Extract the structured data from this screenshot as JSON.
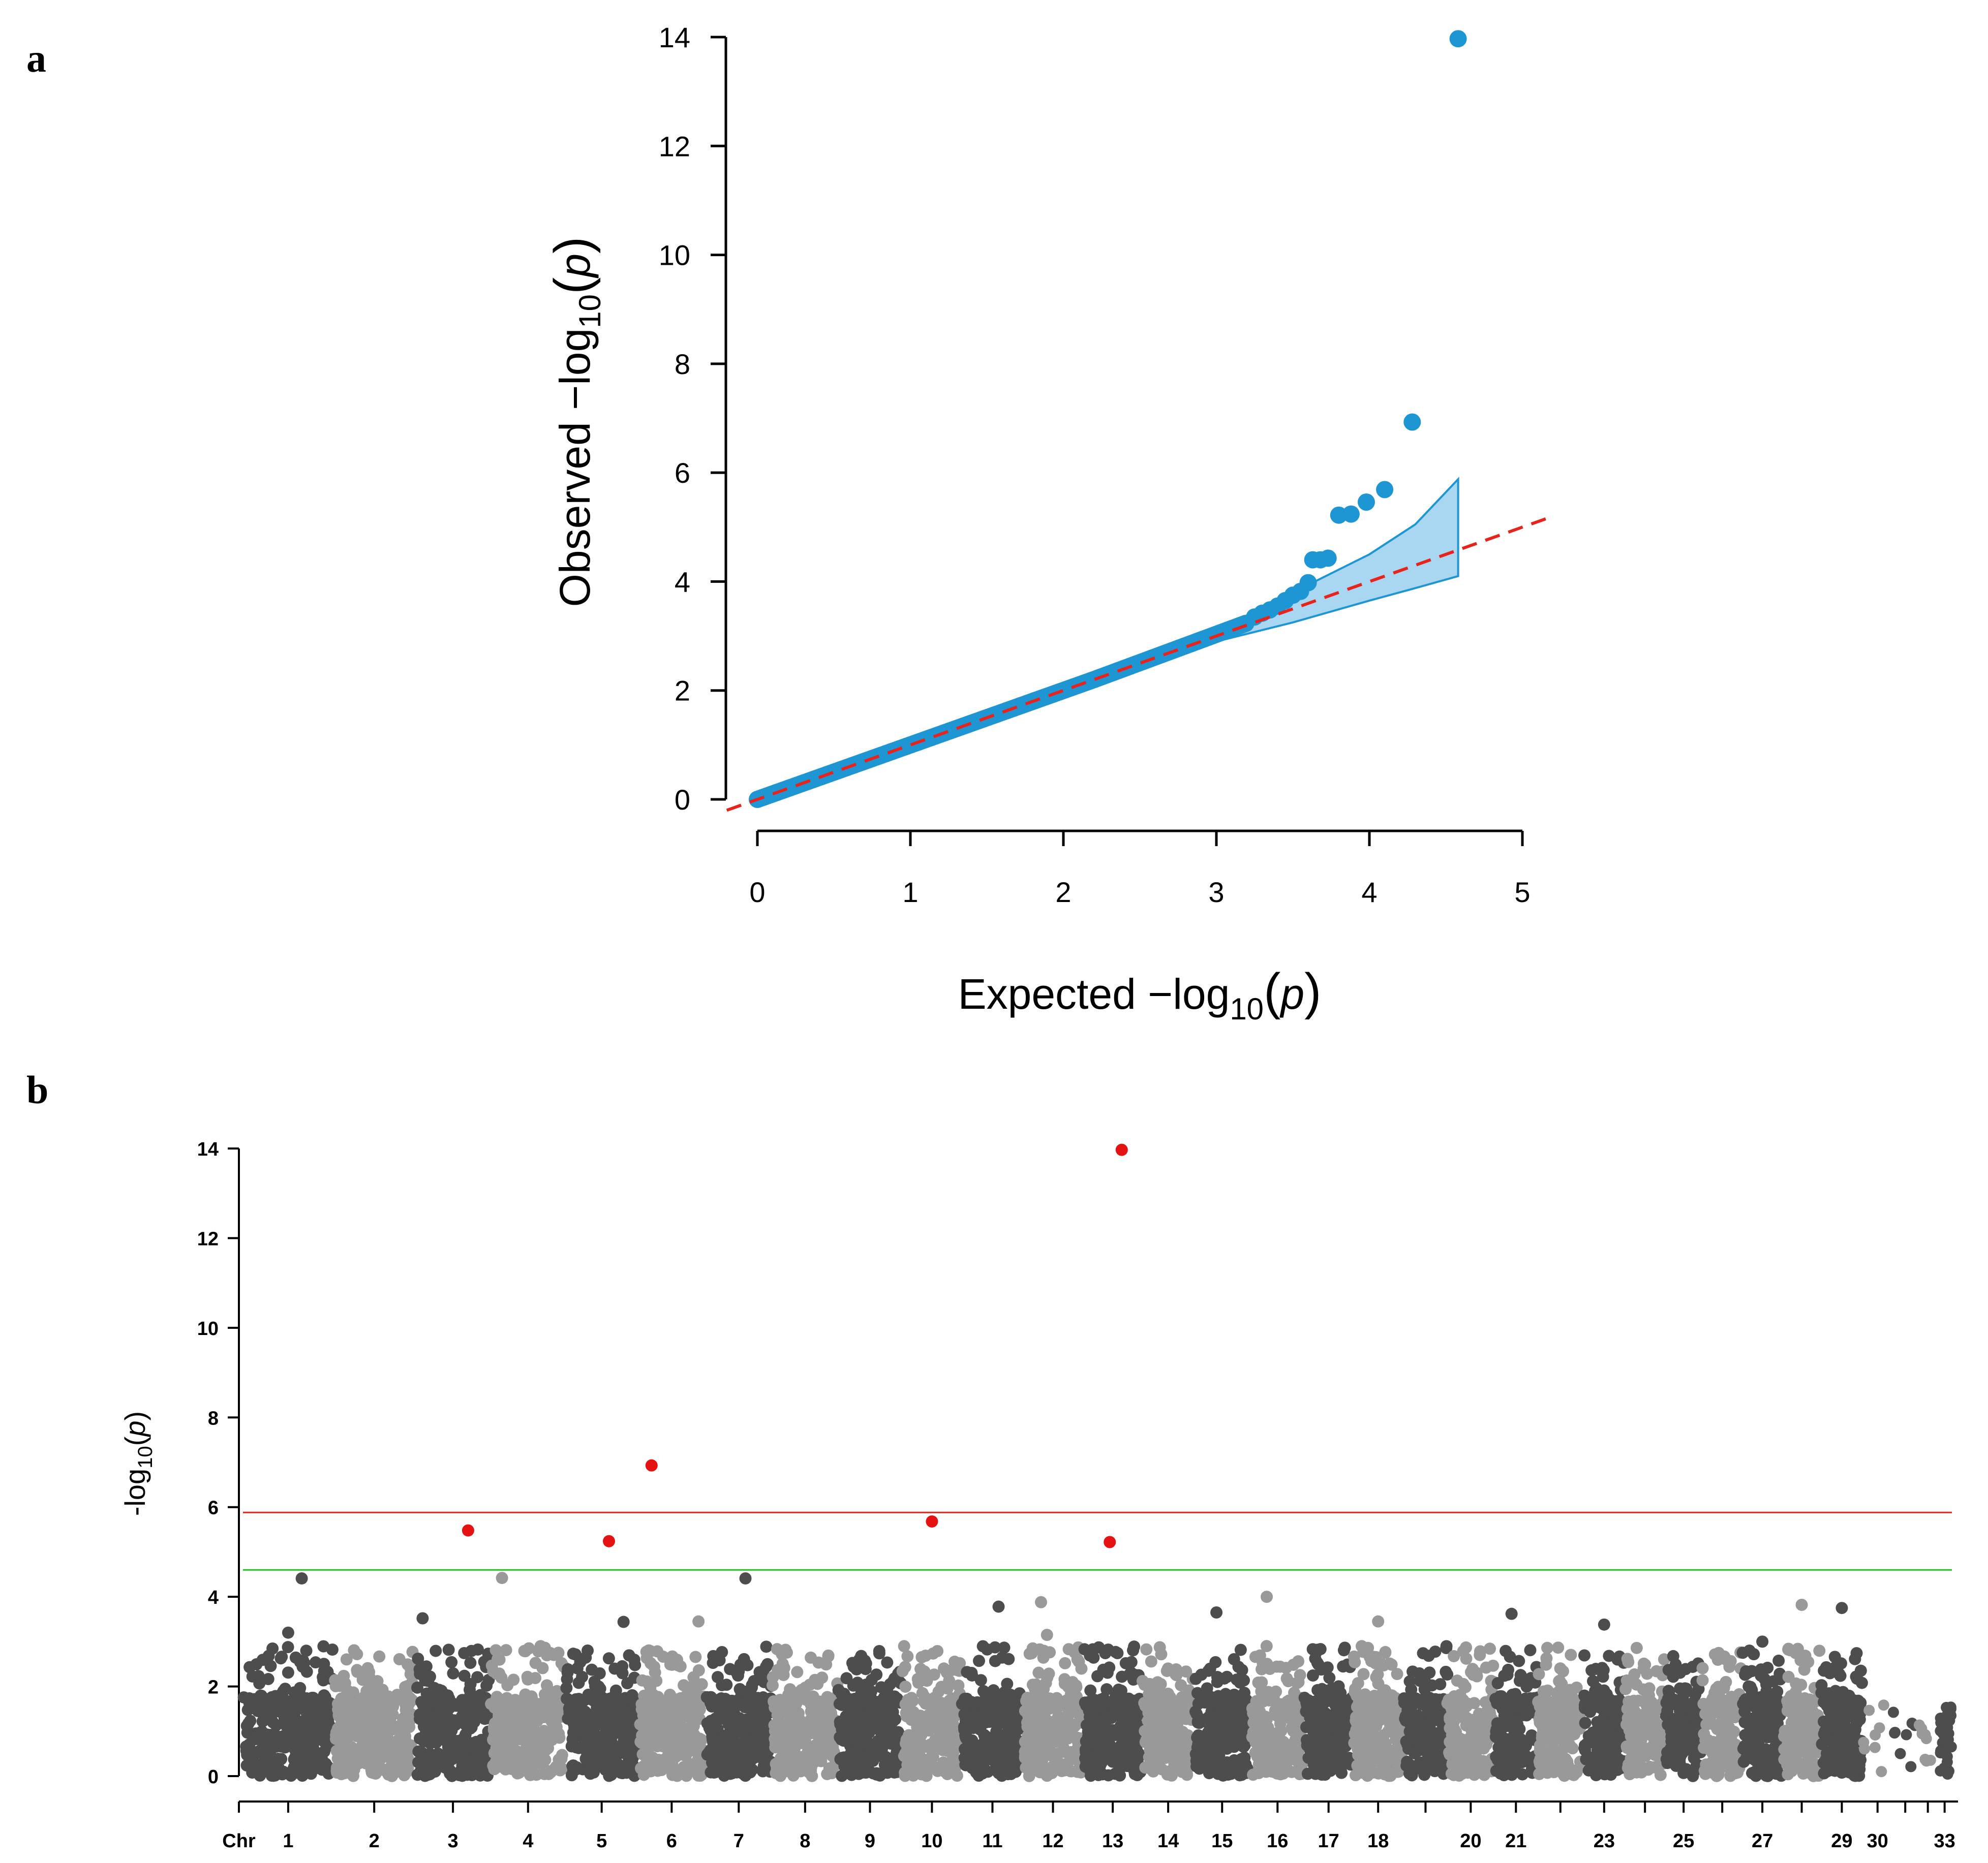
{
  "panels": {
    "a": "a",
    "b": "b"
  },
  "chart_data": [
    {
      "type": "scatter",
      "name": "qq-plot",
      "xlabel": {
        "prefix": "Expected  −log",
        "sub": "10",
        "paren_open": "(",
        "var": "p",
        "paren_close": ")"
      },
      "ylabel": {
        "prefix": "Observed  −log",
        "sub": "10",
        "paren_open": "(",
        "var": "p",
        "paren_close": ")"
      },
      "xlim": [
        0,
        5
      ],
      "ylim": [
        0,
        14
      ],
      "x_ticks": [
        0,
        1,
        2,
        3,
        4,
        5
      ],
      "y_ticks": [
        0,
        2,
        4,
        6,
        8,
        10,
        12,
        14
      ],
      "point_color": "#1E96D4",
      "line_color": "#E8231C",
      "band_fill": "#A9D6F0",
      "band_stroke": "#1E96D4",
      "expected_line": {
        "x": [
          -0.2,
          5.2
        ],
        "y": [
          -0.2,
          5.2
        ]
      },
      "confidence_band": {
        "x": [
          3.0,
          3.5,
          4.0,
          4.3,
          4.58
        ],
        "upper": [
          3.1,
          3.8,
          4.5,
          5.05,
          5.88
        ],
        "lower": [
          2.9,
          3.25,
          3.65,
          3.88,
          4.1
        ]
      },
      "tail_points": {
        "x": [
          3.25,
          3.3,
          3.35,
          3.4,
          3.45,
          3.5,
          3.55,
          3.6,
          3.63,
          3.68,
          3.73,
          3.8,
          3.88,
          3.98,
          4.1,
          4.28,
          4.58
        ],
        "y": [
          3.35,
          3.42,
          3.48,
          3.55,
          3.65,
          3.75,
          3.82,
          3.98,
          4.4,
          4.4,
          4.43,
          5.22,
          5.24,
          5.46,
          5.69,
          6.93,
          13.97
        ]
      }
    },
    {
      "type": "scatter",
      "name": "manhattan-plot",
      "ylabel": {
        "prefix": "-log",
        "sub": "10",
        "paren_open": "(",
        "var": "p",
        "paren_close": ")"
      },
      "ylim": [
        0,
        14
      ],
      "y_ticks": [
        0,
        2,
        4,
        6,
        8,
        10,
        12,
        14
      ],
      "chr_prefix": "Chr",
      "chromosome_labels": [
        "1",
        "2",
        "3",
        "4",
        "5",
        "6",
        "7",
        "8",
        "9",
        "10",
        "11",
        "12",
        "13",
        "14",
        "15",
        "16",
        "17",
        "18",
        "20",
        "21",
        "23",
        "25",
        "27",
        "29",
        "30",
        "33"
      ],
      "chromosome_widths": [
        6.2,
        5.6,
        5.2,
        5.1,
        5.0,
        4.6,
        4.6,
        4.5,
        4.4,
        4.1,
        4.2,
        4.1,
        4.1,
        3.5,
        3.9,
        3.7,
        3.3,
        3.5,
        3.0,
        3.2,
        3.0,
        3.1,
        2.9,
        2.7,
        2.6,
        2.7,
        2.8,
        2.6,
        2.9,
        2.0,
        1.8,
        1.3,
        1.0
      ],
      "chromosome_colors": [
        "#4D4D4D",
        "#999999"
      ],
      "highlight_color": "#E51212",
      "suggestive_threshold": {
        "value": 5.88,
        "color": "#E8231C"
      },
      "significance_threshold": {
        "value": 4.6,
        "color": "#22C022"
      },
      "significant_snps": {
        "chr": [
          3,
          5,
          6,
          10,
          13,
          13
        ],
        "pos": [
          0.7,
          0.6,
          0.2,
          0.5,
          0.45,
          0.65
        ],
        "value": [
          5.48,
          5.24,
          6.93,
          5.68,
          5.22,
          13.97
        ]
      },
      "top_snps": {
        "chr": [
          1,
          4,
          7,
          1,
          3,
          5,
          6,
          10,
          11,
          12,
          12,
          15,
          16,
          18,
          21,
          23,
          27,
          28,
          29
        ],
        "pos": [
          0.65,
          0.15,
          0.6,
          0.5,
          0.1,
          0.8,
          0.9,
          0.7,
          0.6,
          0.3,
          0.4,
          0.4,
          0.3,
          0.5,
          0.4,
          0.5,
          0.5,
          0.5,
          0.5
        ],
        "value": [
          4.41,
          4.42,
          4.41,
          3.2,
          3.52,
          3.44,
          3.45,
          2.4,
          3.78,
          3.88,
          3.15,
          3.65,
          4.0,
          3.45,
          3.62,
          3.38,
          3.0,
          3.82,
          3.75
        ]
      }
    }
  ]
}
